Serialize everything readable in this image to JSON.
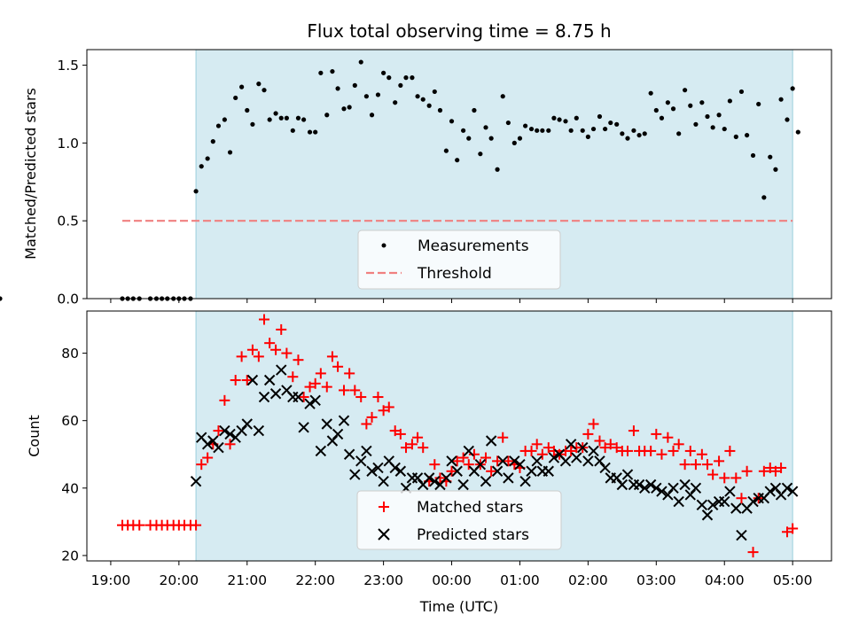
{
  "figure": {
    "title": "Flux total observing time = 8.75 h",
    "xlabel": "Time (UTC)",
    "x_ticks": [
      "19:00",
      "20:00",
      "21:00",
      "22:00",
      "23:00",
      "00:00",
      "01:00",
      "02:00",
      "03:00",
      "04:00",
      "05:00"
    ],
    "shaded_span": {
      "start_hours_after_19": 1.25,
      "end_hours_after_19": 10.0,
      "color": "#add8e6"
    }
  },
  "chart_data": [
    {
      "type": "scatter",
      "panel": "top",
      "ylabel": "Matched/Predicted stars",
      "xlim_hours_after_19": [
        -0.35,
        10.57
      ],
      "ylim": [
        0.0,
        1.6
      ],
      "y_ticks": [
        "0.0",
        "0.5",
        "1.0",
        "1.5"
      ],
      "legend_position": "lower center",
      "series": [
        {
          "name": "Measurements",
          "kind": "points",
          "color": "#000000",
          "x_hours_after_19": [
            0.17,
            0.25,
            0.33,
            0.42,
            0.58,
            0.67,
            0.75,
            0.83,
            0.92,
            1.0,
            1.08,
            1.17,
            1.25,
            1.33,
            1.42,
            1.5,
            1.58,
            1.67,
            1.75,
            1.83,
            1.92,
            2.0,
            2.08,
            2.17,
            2.25,
            2.33,
            2.42,
            2.5,
            2.58,
            2.67,
            2.75,
            2.83,
            2.92,
            3.0,
            3.08,
            3.17,
            3.25,
            3.33,
            3.42,
            3.5,
            3.58,
            3.67,
            3.75,
            3.83,
            3.92,
            4.0,
            4.08,
            4.17,
            4.25,
            4.33,
            4.42,
            4.5,
            4.58,
            4.67,
            4.75,
            4.83,
            4.92,
            5.0,
            5.08,
            5.17,
            5.25,
            5.33,
            5.42,
            5.5,
            5.58,
            5.67,
            5.75,
            5.83,
            5.92,
            6.0,
            6.08,
            6.17,
            6.25,
            6.33,
            6.42,
            6.5,
            6.58,
            6.67,
            6.75,
            6.83,
            6.92,
            7.0,
            7.08,
            7.17,
            7.25,
            7.33,
            7.42,
            7.5,
            7.58,
            7.67,
            7.75,
            7.83,
            7.92,
            8.0,
            8.08,
            8.17,
            8.25,
            8.33,
            8.42,
            8.5,
            8.58,
            8.67,
            8.75,
            8.83,
            8.92,
            9.0,
            9.08,
            9.17,
            9.25,
            9.33,
            9.42,
            9.5,
            9.58,
            9.67,
            9.75,
            9.83,
            9.92,
            10.0,
            10.08
          ],
          "y": [
            0.0,
            0.0,
            0.0,
            0.0,
            0.0,
            0.0,
            0.0,
            0.0,
            0.0,
            0.0,
            0.0,
            0.0,
            0.69,
            0.85,
            0.9,
            1.01,
            1.11,
            1.15,
            0.94,
            1.29,
            1.36,
            1.21,
            1.12,
            1.38,
            1.34,
            1.15,
            1.19,
            1.16,
            1.16,
            1.08,
            1.16,
            1.15,
            1.07,
            1.07,
            1.45,
            1.18,
            1.46,
            1.35,
            1.22,
            1.23,
            1.37,
            1.52,
            1.3,
            1.18,
            1.31,
            1.45,
            1.42,
            1.26,
            1.37,
            1.42,
            1.42,
            1.3,
            1.28,
            1.24,
            1.33,
            1.21,
            0.95,
            1.14,
            0.89,
            1.08,
            1.03,
            1.21,
            0.93,
            1.1,
            1.03,
            0.83,
            1.3,
            1.13,
            1.0,
            1.03,
            1.11,
            1.09,
            1.08,
            1.08,
            1.08,
            1.16,
            1.15,
            1.14,
            1.08,
            1.16,
            1.08,
            1.04,
            1.09,
            1.17,
            1.09,
            1.13,
            1.12,
            1.06,
            1.03,
            1.08,
            1.05,
            1.06,
            1.32,
            1.21,
            1.16,
            1.26,
            1.22,
            1.06,
            1.34,
            1.24,
            1.12,
            1.26,
            1.17,
            1.1,
            1.18,
            1.09,
            1.27,
            1.04,
            1.33,
            1.05,
            0.92,
            1.25,
            0.65,
            0.91,
            0.83,
            1.28,
            1.15,
            1.35,
            1.07,
            0.0
          ]
        },
        {
          "name": "Threshold",
          "kind": "dashed-line",
          "color": "#f08080",
          "x_hours_after_19": [
            0.17,
            10.0
          ],
          "y": [
            0.5,
            0.5
          ]
        }
      ]
    },
    {
      "type": "scatter",
      "panel": "bottom",
      "ylabel": "Count",
      "xlim_hours_after_19": [
        -0.35,
        10.57
      ],
      "ylim": [
        18.4,
        92.5
      ],
      "y_ticks": [
        "20",
        "40",
        "60",
        "80"
      ],
      "legend_position": "lower center",
      "series": [
        {
          "name": "Matched stars",
          "kind": "plus",
          "color": "#ff0000",
          "x_hours_after_19": [
            0.17,
            0.25,
            0.33,
            0.42,
            0.58,
            0.67,
            0.75,
            0.83,
            0.92,
            1.0,
            1.08,
            1.17,
            1.25,
            1.33,
            1.42,
            1.5,
            1.58,
            1.67,
            1.75,
            1.83,
            1.92,
            2.0,
            2.08,
            2.17,
            2.25,
            2.33,
            2.42,
            2.5,
            2.58,
            2.67,
            2.75,
            2.83,
            2.92,
            3.0,
            3.08,
            3.17,
            3.25,
            3.33,
            3.42,
            3.5,
            3.58,
            3.67,
            3.75,
            3.83,
            3.92,
            4.0,
            4.08,
            4.17,
            4.25,
            4.33,
            4.42,
            4.5,
            4.58,
            4.67,
            4.75,
            4.83,
            4.92,
            5.0,
            5.08,
            5.17,
            5.25,
            5.33,
            5.42,
            5.5,
            5.58,
            5.67,
            5.75,
            5.83,
            5.92,
            6.0,
            6.08,
            6.17,
            6.25,
            6.33,
            6.42,
            6.5,
            6.58,
            6.67,
            6.75,
            6.83,
            6.92,
            7.0,
            7.08,
            7.17,
            7.25,
            7.33,
            7.42,
            7.5,
            7.58,
            7.67,
            7.75,
            7.83,
            7.92,
            8.0,
            8.08,
            8.17,
            8.25,
            8.33,
            8.42,
            8.5,
            8.58,
            8.67,
            8.75,
            8.83,
            8.92,
            9.0,
            9.08,
            9.17,
            9.25,
            9.33,
            9.42,
            9.5,
            9.58,
            9.67,
            9.75,
            9.83,
            9.92,
            10.0,
            10.08
          ],
          "y": [
            29,
            29,
            29,
            29,
            29,
            29,
            29,
            29,
            29,
            29,
            29,
            29,
            29,
            47,
            49,
            53,
            57,
            66,
            53,
            72,
            79,
            72,
            81,
            79,
            90,
            83,
            81,
            87,
            80,
            73,
            78,
            67,
            70,
            71,
            74,
            70,
            79,
            76,
            69,
            74,
            69,
            67,
            59,
            61,
            67,
            63,
            64,
            57,
            56,
            52,
            53,
            55,
            52,
            42,
            47,
            43,
            42,
            45,
            48,
            49,
            47,
            50,
            47,
            49,
            45,
            48,
            55,
            48,
            47,
            46,
            51,
            51,
            53,
            50,
            52,
            51,
            50,
            51,
            51,
            52,
            52,
            56,
            59,
            54,
            52,
            53,
            52,
            51,
            51,
            57,
            51,
            51,
            51,
            56,
            50,
            55,
            51,
            53,
            47,
            51,
            47,
            50,
            47,
            44,
            48,
            43,
            51,
            43,
            37,
            45,
            21,
            37,
            45,
            46,
            45,
            46,
            27,
            28
          ]
        },
        {
          "name": "Predicted stars",
          "kind": "x",
          "color": "#000000",
          "x_hours_after_19": [
            1.25,
            1.33,
            1.42,
            1.5,
            1.58,
            1.67,
            1.75,
            1.83,
            1.92,
            2.0,
            2.08,
            2.17,
            2.25,
            2.33,
            2.42,
            2.5,
            2.58,
            2.67,
            2.75,
            2.83,
            2.92,
            3.0,
            3.08,
            3.17,
            3.25,
            3.33,
            3.42,
            3.5,
            3.58,
            3.67,
            3.75,
            3.83,
            3.92,
            4.0,
            4.08,
            4.17,
            4.25,
            4.33,
            4.42,
            4.5,
            4.58,
            4.67,
            4.75,
            4.83,
            4.92,
            5.0,
            5.08,
            5.17,
            5.25,
            5.33,
            5.42,
            5.5,
            5.58,
            5.67,
            5.75,
            5.83,
            5.92,
            6.0,
            6.08,
            6.17,
            6.25,
            6.33,
            6.42,
            6.5,
            6.58,
            6.67,
            6.75,
            6.83,
            6.92,
            7.0,
            7.08,
            7.17,
            7.25,
            7.33,
            7.42,
            7.5,
            7.58,
            7.67,
            7.75,
            7.83,
            7.92,
            8.0,
            8.08,
            8.17,
            8.25,
            8.33,
            8.42,
            8.5,
            8.58,
            8.67,
            8.75,
            8.83,
            8.92,
            9.0,
            9.08,
            9.17,
            9.25,
            9.33,
            9.42,
            9.5,
            9.58,
            9.67,
            9.75,
            9.83,
            9.92,
            10.0
          ],
          "y": [
            42,
            55,
            53,
            54,
            52,
            57,
            56,
            55,
            57,
            59,
            72,
            57,
            67,
            72,
            68,
            75,
            69,
            67,
            67,
            58,
            65,
            66,
            51,
            59,
            54,
            56,
            60,
            50,
            44,
            48,
            51,
            45,
            46,
            42,
            48,
            46,
            45,
            40,
            43,
            43,
            41,
            43,
            42,
            41,
            43,
            48,
            45,
            41,
            51,
            45,
            47,
            42,
            54,
            45,
            48,
            43,
            48,
            47,
            42,
            45,
            48,
            45,
            45,
            49,
            50,
            48,
            53,
            49,
            52,
            48,
            51,
            48,
            46,
            43,
            43,
            41,
            44,
            41,
            41,
            40,
            41,
            40,
            39,
            38,
            40,
            36,
            41,
            38,
            40,
            35,
            32,
            35,
            36,
            36,
            39,
            34,
            26,
            34,
            36,
            37,
            37,
            39,
            40,
            38,
            40,
            39
          ]
        }
      ]
    }
  ]
}
